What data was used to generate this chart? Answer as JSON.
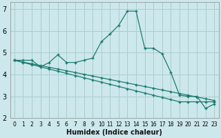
{
  "xlabel": "Humidex (Indice chaleur)",
  "bg_color": "#cce8ec",
  "grid_color": "#aacccc",
  "line_color": "#1a7a6e",
  "xlim": [
    -0.5,
    23.5
  ],
  "ylim": [
    2,
    7.3
  ],
  "yticks": [
    2,
    3,
    4,
    5,
    6,
    7
  ],
  "xticks": [
    0,
    1,
    2,
    3,
    4,
    5,
    6,
    7,
    8,
    9,
    10,
    11,
    12,
    13,
    14,
    15,
    16,
    17,
    18,
    19,
    20,
    21,
    22,
    23
  ],
  "series1_x": [
    0,
    1,
    2,
    3,
    4,
    5,
    6,
    7,
    8,
    9,
    10,
    11,
    12,
    13,
    14,
    15,
    16,
    17,
    18,
    19,
    20,
    21,
    22,
    23
  ],
  "series1_y": [
    4.65,
    4.65,
    4.65,
    4.35,
    4.55,
    4.9,
    4.55,
    4.55,
    4.65,
    4.75,
    5.5,
    5.85,
    6.25,
    6.9,
    6.9,
    5.2,
    5.2,
    4.95,
    4.1,
    3.05,
    3.0,
    3.0,
    2.45,
    2.65
  ],
  "series2_x": [
    0,
    1,
    2,
    3,
    4,
    5,
    6,
    7,
    8,
    9,
    10,
    11,
    12,
    13,
    14,
    15,
    16,
    17,
    18,
    19,
    20,
    21,
    22,
    23
  ],
  "series2_y": [
    4.65,
    4.55,
    4.45,
    4.35,
    4.25,
    4.15,
    4.05,
    3.95,
    3.85,
    3.75,
    3.65,
    3.55,
    3.45,
    3.35,
    3.25,
    3.15,
    3.05,
    2.95,
    2.85,
    2.75,
    2.75,
    2.75,
    2.75,
    2.75
  ],
  "series3_x": [
    0,
    1,
    2,
    3,
    4,
    5,
    6,
    7,
    8,
    9,
    10,
    11,
    12,
    13,
    14,
    15,
    16,
    17,
    18,
    19,
    20,
    21,
    22,
    23
  ],
  "series3_y": [
    4.65,
    4.57,
    4.49,
    4.41,
    4.33,
    4.25,
    4.17,
    4.09,
    4.01,
    3.93,
    3.85,
    3.77,
    3.69,
    3.61,
    3.53,
    3.45,
    3.37,
    3.29,
    3.21,
    3.13,
    3.05,
    2.97,
    2.89,
    2.81
  ]
}
